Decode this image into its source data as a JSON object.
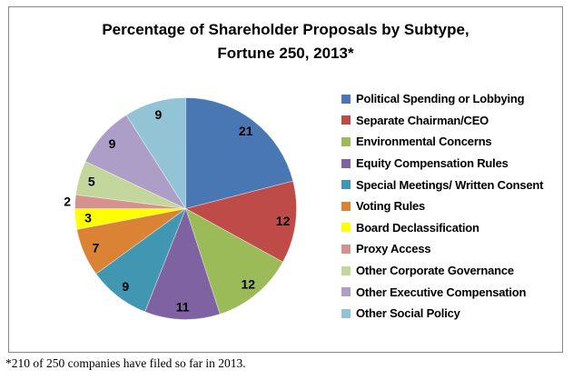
{
  "chart_data": {
    "type": "pie",
    "title": "Percentage of Shareholder Proposals by Subtype, Fortune 250, 2013*",
    "title_lines": [
      "Percentage of Shareholder Proposals by Subtype,",
      "Fortune 250, 2013*"
    ],
    "footnote": "*210 of 250 companies have filed so far in 2013.",
    "legend_position": "right",
    "start_angle_deg": 0,
    "direction": "clockwise",
    "values_shown_as": "data-labels",
    "total": 100,
    "slices": [
      {
        "label": "Political Spending or Lobbying",
        "value": 21,
        "color": "#4977B3"
      },
      {
        "label": "Separate Chairman/CEO",
        "value": 12,
        "color": "#BE4B48"
      },
      {
        "label": "Environmental Concerns",
        "value": 12,
        "color": "#9BBB59"
      },
      {
        "label": "Equity Compensation Rules",
        "value": 11,
        "color": "#7E62A1"
      },
      {
        "label": "Special Meetings/ Written Consent",
        "value": 9,
        "color": "#4197B2"
      },
      {
        "label": "Voting Rules",
        "value": 7,
        "color": "#DA8334"
      },
      {
        "label": "Board Declassification",
        "value": 3,
        "color": "#FFFF00"
      },
      {
        "label": "Proxy Access",
        "value": 2,
        "color": "#D4918D"
      },
      {
        "label": "Other Corporate Governance",
        "value": 5,
        "color": "#C3D69B"
      },
      {
        "label": "Other Executive Compensation",
        "value": 9,
        "color": "#AC9EC6"
      },
      {
        "label": "Other Social Policy",
        "value": 9,
        "color": "#92C4D6"
      }
    ]
  }
}
